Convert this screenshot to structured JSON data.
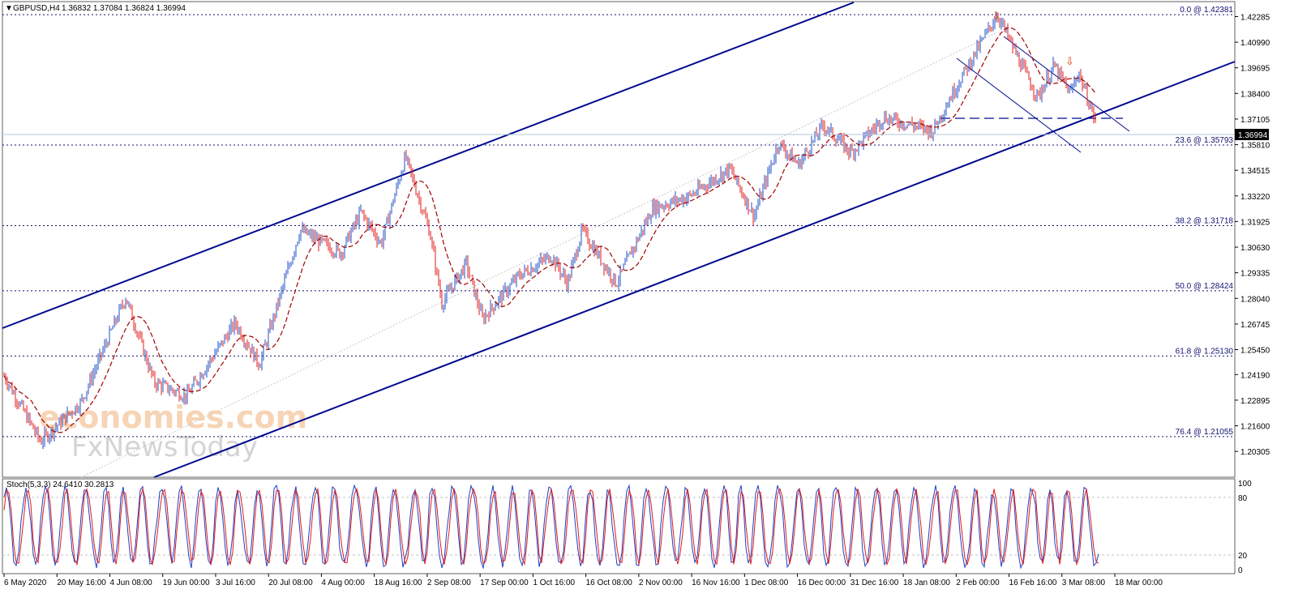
{
  "header": {
    "symbol": "GBPUSD,H4",
    "ohlc": "1.36832 1.37084 1.36824 1.36994"
  },
  "indicator": {
    "label": "Stoch(5,3,3) 24.6410 30.2813",
    "levels": [
      "100",
      "80",
      "20",
      "0"
    ]
  },
  "watermark": {
    "line1": "economies.com",
    "line2": "FxNewsToday"
  },
  "current_price": "1.36994",
  "colors": {
    "bull_candle": "#1f4fc4",
    "bear_candle": "#e01b1b",
    "channel": "#000a8f",
    "fib_line": "#101070",
    "ma": "#a00000",
    "arrow": "#e04010"
  },
  "chart_data": {
    "type": "candlestick",
    "ylim": [
      1.19,
      1.43
    ],
    "price_ticks": [
      "1.42285",
      "1.40990",
      "1.39695",
      "1.38400",
      "1.37105",
      "1.35810",
      "1.34515",
      "1.33220",
      "1.31925",
      "1.30630",
      "1.29335",
      "1.28040",
      "1.26745",
      "1.25450",
      "1.24190",
      "1.22895",
      "1.21600",
      "1.20305"
    ],
    "x_labels": [
      "6 May 2020",
      "20 May 16:00",
      "4 Jun 08:00",
      "19 Jun 00:00",
      "3 Jul 16:00",
      "20 Jul 08:00",
      "4 Aug 00:00",
      "18 Aug 16:00",
      "2 Sep 08:00",
      "17 Sep 00:00",
      "1 Oct 16:00",
      "16 Oct 08:00",
      "2 Nov 00:00",
      "16 Nov 16:00",
      "1 Dec 08:00",
      "16 Dec 00:00",
      "31 Dec 16:00",
      "18 Jan 08:00",
      "2 Feb 00:00",
      "16 Feb 16:00",
      "3 Mar 08:00",
      "18 Mar 00:00"
    ],
    "fibonacci": [
      {
        "label": "0.0 @ 1.42381",
        "price": 1.42381
      },
      {
        "label": "23.6 @ 1.35793",
        "price": 1.35793
      },
      {
        "label": "38.2 @ 1.31718",
        "price": 1.31718
      },
      {
        "label": "50.0 @ 1.28424",
        "price": 1.28424
      },
      {
        "label": "61.8 @ 1.25130",
        "price": 1.2513
      },
      {
        "label": "76.4 @ 1.21055",
        "price": 1.21055
      }
    ],
    "price_path": [
      [
        0,
        1.245
      ],
      [
        50,
        1.208
      ],
      [
        100,
        1.228
      ],
      [
        155,
        1.281
      ],
      [
        190,
        1.238
      ],
      [
        230,
        1.231
      ],
      [
        290,
        1.268
      ],
      [
        320,
        1.247
      ],
      [
        370,
        1.315
      ],
      [
        420,
        1.303
      ],
      [
        445,
        1.324
      ],
      [
        470,
        1.308
      ],
      [
        500,
        1.352
      ],
      [
        530,
        1.314
      ],
      [
        545,
        1.278
      ],
      [
        575,
        1.298
      ],
      [
        595,
        1.27
      ],
      [
        640,
        1.292
      ],
      [
        680,
        1.302
      ],
      [
        700,
        1.288
      ],
      [
        718,
        1.315
      ],
      [
        760,
        1.288
      ],
      [
        805,
        1.326
      ],
      [
        850,
        1.332
      ],
      [
        900,
        1.346
      ],
      [
        930,
        1.322
      ],
      [
        960,
        1.359
      ],
      [
        985,
        1.348
      ],
      [
        1015,
        1.368
      ],
      [
        1050,
        1.354
      ],
      [
        1090,
        1.372
      ],
      [
        1150,
        1.365
      ],
      [
        1180,
        1.388
      ],
      [
        1230,
        1.424
      ],
      [
        1260,
        1.398
      ],
      [
        1280,
        1.382
      ],
      [
        1300,
        1.398
      ],
      [
        1320,
        1.384
      ],
      [
        1330,
        1.395
      ],
      [
        1352,
        1.369
      ]
    ]
  }
}
